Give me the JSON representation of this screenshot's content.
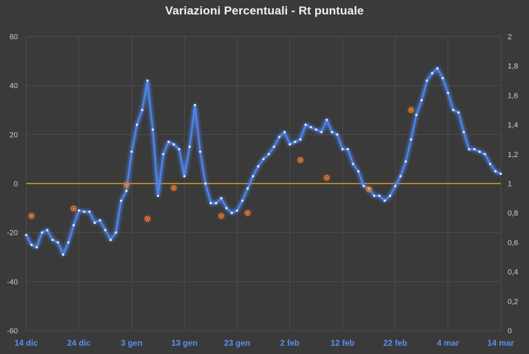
{
  "chart_data": {
    "type": "line",
    "title": "Variazioni Percentuali - Rt puntuale",
    "x_tick_labels": [
      "14 dic",
      "24 dic",
      "3 gen",
      "13 gen",
      "23 gen",
      "2 feb",
      "12 feb",
      "22 feb",
      "4 mar",
      "14 mar"
    ],
    "y_left": {
      "lim": [
        -60,
        60
      ],
      "ticks": [
        "-60",
        "-40",
        "-20",
        "0",
        "20",
        "40",
        "60"
      ]
    },
    "y_right": {
      "lim": [
        0,
        2
      ],
      "ticks": [
        "0",
        "0,2",
        "0,4",
        "0,6",
        "0,8",
        "1",
        "1,2",
        "1,4",
        "1,6",
        "1,8",
        "2"
      ]
    },
    "grid": true,
    "series": [
      {
        "axis": "left",
        "color": "#4f86ee",
        "x": [
          "14 dic",
          "15 dic",
          "16 dic",
          "17 dic",
          "18 dic",
          "19 dic",
          "20 dic",
          "21 dic",
          "22 dic",
          "23 dic",
          "24 dic",
          "25 dic",
          "26 dic",
          "27 dic",
          "28 dic",
          "29 dic",
          "30 dic",
          "31 dic",
          "1 gen",
          "2 gen",
          "3 gen",
          "4 gen",
          "5 gen",
          "6 gen",
          "7 gen",
          "8 gen",
          "9 gen",
          "10 gen",
          "11 gen",
          "12 gen",
          "13 gen",
          "14 gen",
          "15 gen",
          "16 gen",
          "17 gen",
          "18 gen",
          "19 gen",
          "20 gen",
          "21 gen",
          "22 gen",
          "23 gen",
          "24 gen",
          "25 gen",
          "26 gen",
          "27 gen",
          "28 gen",
          "29 gen",
          "30 gen",
          "31 gen",
          "1 feb",
          "2 feb",
          "3 feb",
          "4 feb",
          "5 feb",
          "6 feb",
          "7 feb",
          "8 feb",
          "9 feb",
          "10 feb",
          "11 feb",
          "12 feb",
          "13 feb",
          "14 feb",
          "15 feb",
          "16 feb",
          "17 feb",
          "18 feb",
          "19 feb",
          "20 feb",
          "21 feb",
          "22 feb",
          "23 feb",
          "24 feb",
          "25 feb",
          "26 feb",
          "27 feb",
          "28 feb",
          "1 mar",
          "2 mar",
          "3 mar",
          "4 mar",
          "5 mar",
          "6 mar",
          "7 mar",
          "8 mar",
          "9 mar",
          "10 mar",
          "11 mar",
          "12 mar",
          "13 mar",
          "14 mar"
        ],
        "values": [
          -21,
          -25,
          -26,
          -20,
          -19,
          -23,
          -24,
          -29,
          -24,
          -17,
          -11,
          -11.5,
          -11.5,
          -16,
          -15,
          -19,
          -23,
          -20,
          -7,
          -3,
          13,
          24,
          30,
          42,
          22,
          -5,
          12,
          17,
          16,
          14,
          3,
          15,
          32,
          13,
          0,
          -8,
          -8,
          -6,
          -10,
          -12,
          -11,
          -7,
          -2,
          3,
          7,
          10,
          12,
          15,
          19,
          21,
          16,
          17,
          18,
          24,
          23,
          22,
          21,
          26,
          21,
          20,
          14,
          14,
          8,
          5,
          -1,
          -2,
          -5,
          -5,
          -7,
          -5,
          -1,
          3,
          9,
          18,
          28,
          34,
          42,
          45,
          47,
          43,
          37,
          30,
          29,
          21,
          14,
          14,
          13,
          12,
          8,
          5,
          4
        ]
      },
      {
        "axis": "right",
        "color": "#e4742c",
        "x": [
          "15 dic",
          "23 dic",
          "2 gen",
          "6 gen",
          "11 gen",
          "20 gen",
          "25 gen",
          "4 feb",
          "9 feb",
          "17 feb",
          "25 feb"
        ],
        "values": [
          0.78,
          0.83,
          0.99,
          0.76,
          0.97,
          0.78,
          0.8,
          1.16,
          1.04,
          0.96,
          1.5
        ]
      }
    ],
    "reference_line": {
      "value": 0,
      "color": "#d9a227"
    }
  }
}
